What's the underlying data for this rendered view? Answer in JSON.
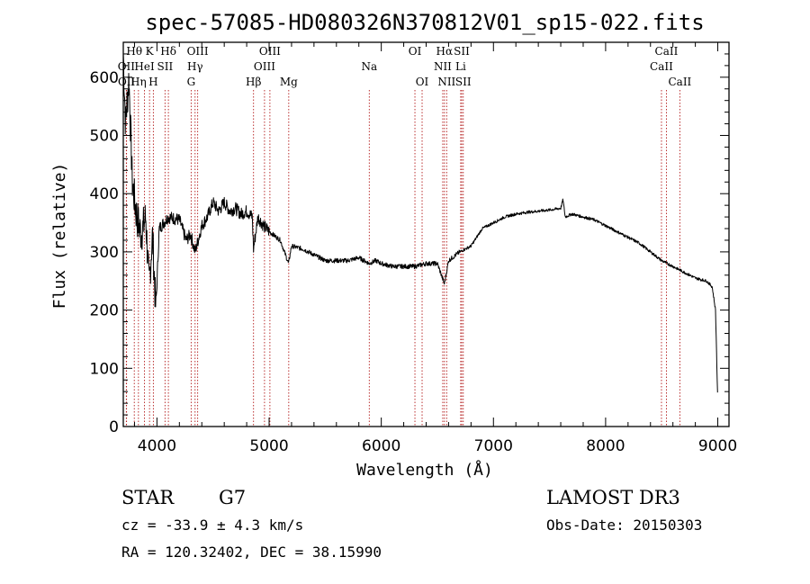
{
  "chart_data": {
    "type": "line",
    "title": "spec-57085-HD080326N370812V01_sp15-022.fits",
    "xlabel": "Wavelength (Å)",
    "ylabel": "Flux (relative)",
    "xlim": [
      3700,
      9100
    ],
    "ylim": [
      0,
      660
    ],
    "xticks": [
      4000,
      5000,
      6000,
      7000,
      8000,
      9000
    ],
    "yticks": [
      0,
      100,
      200,
      300,
      400,
      500,
      600
    ],
    "spectrum_knots": [
      [
        3700,
        640
      ],
      [
        3720,
        520
      ],
      [
        3750,
        600
      ],
      [
        3780,
        420
      ],
      [
        3820,
        360
      ],
      [
        3860,
        330
      ],
      [
        3900,
        360
      ],
      [
        3930,
        240
      ],
      [
        3960,
        330
      ],
      [
        3990,
        200
      ],
      [
        4020,
        340
      ],
      [
        4100,
        360
      ],
      [
        4200,
        355
      ],
      [
        4260,
        320
      ],
      [
        4300,
        330
      ],
      [
        4340,
        300
      ],
      [
        4400,
        345
      ],
      [
        4450,
        360
      ],
      [
        4500,
        385
      ],
      [
        4550,
        370
      ],
      [
        4600,
        385
      ],
      [
        4650,
        370
      ],
      [
        4700,
        375
      ],
      [
        4750,
        365
      ],
      [
        4800,
        370
      ],
      [
        4850,
        360
      ],
      [
        4861,
        305
      ],
      [
        4900,
        360
      ],
      [
        4950,
        345
      ],
      [
        5000,
        335
      ],
      [
        5100,
        320
      ],
      [
        5173,
        280
      ],
      [
        5200,
        310
      ],
      [
        5300,
        305
      ],
      [
        5400,
        295
      ],
      [
        5500,
        285
      ],
      [
        5600,
        285
      ],
      [
        5700,
        285
      ],
      [
        5800,
        290
      ],
      [
        5893,
        280
      ],
      [
        5950,
        285
      ],
      [
        6000,
        280
      ],
      [
        6100,
        275
      ],
      [
        6200,
        275
      ],
      [
        6300,
        275
      ],
      [
        6400,
        280
      ],
      [
        6500,
        280
      ],
      [
        6563,
        245
      ],
      [
        6600,
        285
      ],
      [
        6700,
        300
      ],
      [
        6800,
        310
      ],
      [
        6900,
        340
      ],
      [
        7000,
        350
      ],
      [
        7100,
        360
      ],
      [
        7200,
        365
      ],
      [
        7300,
        368
      ],
      [
        7400,
        370
      ],
      [
        7500,
        372
      ],
      [
        7600,
        375
      ],
      [
        7620,
        390
      ],
      [
        7640,
        360
      ],
      [
        7700,
        365
      ],
      [
        7800,
        360
      ],
      [
        7900,
        355
      ],
      [
        8000,
        345
      ],
      [
        8100,
        335
      ],
      [
        8200,
        325
      ],
      [
        8300,
        315
      ],
      [
        8400,
        300
      ],
      [
        8500,
        285
      ],
      [
        8600,
        275
      ],
      [
        8700,
        265
      ],
      [
        8800,
        255
      ],
      [
        8900,
        250
      ],
      [
        8950,
        240
      ],
      [
        8980,
        200
      ],
      [
        9000,
        40
      ]
    ],
    "emission_lines": [
      {
        "label": "Hθ",
        "wavelength": 3798,
        "row": 1
      },
      {
        "label": "K",
        "wavelength": 3934,
        "row": 1
      },
      {
        "label": "Hδ",
        "wavelength": 4102,
        "row": 1
      },
      {
        "label": "OIII",
        "wavelength": 4363,
        "row": 1
      },
      {
        "label": "OIII",
        "wavelength": 5007,
        "row": 1
      },
      {
        "label": "OI",
        "wavelength": 6300,
        "row": 1
      },
      {
        "label": "Hα",
        "wavelength": 6563,
        "row": 1
      },
      {
        "label": "SII",
        "wavelength": 6717,
        "row": 1
      },
      {
        "label": "CaII",
        "wavelength": 8542,
        "row": 1
      },
      {
        "label": "OII",
        "wavelength": 3727,
        "row": 2
      },
      {
        "label": "HeI",
        "wavelength": 3889,
        "row": 2
      },
      {
        "label": "SII",
        "wavelength": 4072,
        "row": 2
      },
      {
        "label": "Hγ",
        "wavelength": 4340,
        "row": 2
      },
      {
        "label": "OIII",
        "wavelength": 4959,
        "row": 2
      },
      {
        "label": "Na",
        "wavelength": 5893,
        "row": 2
      },
      {
        "label": "NII",
        "wavelength": 6548,
        "row": 2
      },
      {
        "label": "Li",
        "wavelength": 6708,
        "row": 2
      },
      {
        "label": "CaII",
        "wavelength": 8498,
        "row": 2
      },
      {
        "label": "OII",
        "wavelength": 3729,
        "row": 3
      },
      {
        "label": "Hη",
        "wavelength": 3835,
        "row": 3
      },
      {
        "label": "H",
        "wavelength": 3968,
        "row": 3
      },
      {
        "label": "G",
        "wavelength": 4305,
        "row": 3
      },
      {
        "label": "Hβ",
        "wavelength": 4861,
        "row": 3
      },
      {
        "label": "Mg",
        "wavelength": 5175,
        "row": 3
      },
      {
        "label": "OI",
        "wavelength": 6364,
        "row": 3
      },
      {
        "label": "NII",
        "wavelength": 6583,
        "row": 3
      },
      {
        "label": "SII",
        "wavelength": 6731,
        "row": 3
      },
      {
        "label": "CaII",
        "wavelength": 8662,
        "row": 3
      }
    ]
  },
  "info": {
    "object_class": "STAR",
    "subclass": "G7",
    "survey": "LAMOST DR3",
    "redshift": "cz = -33.9 ± 4.3 km/s",
    "obs_date": "Obs-Date: 20150303",
    "coords": "RA = 120.32402, DEC =  38.15990"
  }
}
